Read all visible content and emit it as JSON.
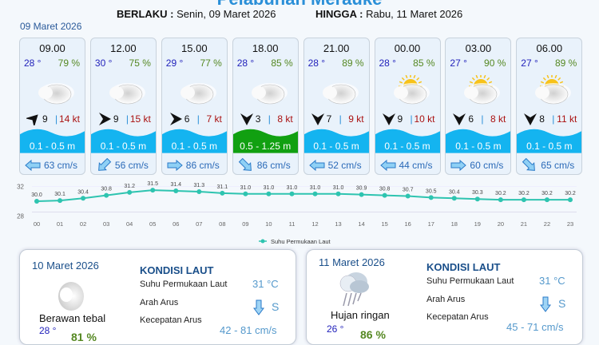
{
  "header": {
    "title": "Pelabuhan Merauke",
    "valid_from_label": "BERLAKU :",
    "valid_from": "Senin, 09 Maret 2026",
    "valid_to_label": "HINGGA :",
    "valid_to": "Rabu, 11 Maret 2026"
  },
  "day_label": "09 Maret 2026",
  "forecasts": [
    {
      "time": "09.00",
      "temp": "28 °",
      "hum": "79 %",
      "icon": "cloudy-icon",
      "wind_dir_deg": 225,
      "wind": "9",
      "kt": "14 kt",
      "wave": "0.1 - 0.5 m",
      "wave_color": "#14b4f0",
      "cur_dir": "left",
      "cur": "63 cm/s"
    },
    {
      "time": "12.00",
      "temp": "30 °",
      "hum": "75 %",
      "icon": "cloudy-icon",
      "wind_dir_deg": 270,
      "wind": "9",
      "kt": "15 kt",
      "wave": "0.1 - 0.5 m",
      "wave_color": "#14b4f0",
      "cur_dir": "down-left",
      "cur": "56 cm/s"
    },
    {
      "time": "15.00",
      "temp": "29 °",
      "hum": "77 %",
      "icon": "cloudy-icon",
      "wind_dir_deg": 270,
      "wind": "6",
      "kt": "7 kt",
      "wave": "0.1 - 0.5 m",
      "wave_color": "#14b4f0",
      "cur_dir": "right",
      "cur": "86 cm/s"
    },
    {
      "time": "18.00",
      "temp": "28 °",
      "hum": "85 %",
      "icon": "cloudy-icon",
      "wind_dir_deg": 0,
      "wind": "3",
      "kt": "8 kt",
      "wave": "0.5 - 1.25 m",
      "wave_color": "#11a011",
      "cur_dir": "down-right",
      "cur": "86 cm/s"
    },
    {
      "time": "21.00",
      "temp": "28 °",
      "hum": "89 %",
      "icon": "cloudy-icon",
      "wind_dir_deg": 0,
      "wind": "7",
      "kt": "9 kt",
      "wave": "0.1 - 0.5 m",
      "wave_color": "#14b4f0",
      "cur_dir": "left",
      "cur": "52 cm/s"
    },
    {
      "time": "00.00",
      "temp": "28 °",
      "hum": "85 %",
      "icon": "partly-cloudy-icon",
      "wind_dir_deg": 0,
      "wind": "9",
      "kt": "10 kt",
      "wave": "0.1 - 0.5 m",
      "wave_color": "#14b4f0",
      "cur_dir": "left",
      "cur": "44 cm/s"
    },
    {
      "time": "03.00",
      "temp": "27 °",
      "hum": "90 %",
      "icon": "partly-cloudy-icon",
      "wind_dir_deg": 0,
      "wind": "6",
      "kt": "8 kt",
      "wave": "0.1 - 0.5 m",
      "wave_color": "#14b4f0",
      "cur_dir": "right",
      "cur": "60 cm/s"
    },
    {
      "time": "06.00",
      "temp": "27 °",
      "hum": "89 %",
      "icon": "partly-cloudy-icon",
      "wind_dir_deg": 0,
      "wind": "8",
      "kt": "11 kt",
      "wave": "0.1 - 0.5 m",
      "wave_color": "#14b4f0",
      "cur_dir": "down-right",
      "cur": "65 cm/s"
    }
  ],
  "chart_data": {
    "type": "line",
    "x": [
      "00",
      "01",
      "02",
      "03",
      "04",
      "05",
      "06",
      "07",
      "08",
      "09",
      "10",
      "11",
      "12",
      "13",
      "14",
      "15",
      "16",
      "17",
      "18",
      "19",
      "20",
      "21",
      "22",
      "23"
    ],
    "series": [
      {
        "name": "Suhu Permukaan Laut",
        "values": [
          30.0,
          30.1,
          30.4,
          30.8,
          31.2,
          31.5,
          31.4,
          31.3,
          31.1,
          31.0,
          31.0,
          31.0,
          31.0,
          31.0,
          30.9,
          30.8,
          30.7,
          30.5,
          30.4,
          30.3,
          30.2,
          30.2,
          30.2,
          30.2
        ]
      }
    ],
    "yticks": [
      "32",
      "28"
    ],
    "ylim": [
      28,
      32
    ],
    "color": "#2ec4b0",
    "legend": "bottom"
  },
  "panels": [
    {
      "date": "10 Maret 2026",
      "icon": "cloudy-icon",
      "desc": "Berawan tebal",
      "temp": "28 °",
      "hum": "81 %",
      "title": "KONDISI LAUT",
      "sst_label": "Suhu Permukaan Laut",
      "sst": "31 °C",
      "dir_label": "Arah Arus",
      "dir": "S",
      "speed_label": "Kecepatan Arus",
      "speed": "42 - 81 cm/s"
    },
    {
      "date": "11 Maret 2026",
      "icon": "light-rain-icon",
      "desc": "Hujan ringan",
      "temp": "26 °",
      "hum": "86 %",
      "title": "KONDISI LAUT",
      "sst_label": "Suhu Permukaan Laut",
      "sst": "31 °C",
      "dir_label": "Arah Arus",
      "dir": "S",
      "speed_label": "Kecepatan Arus",
      "speed": "45 - 71 cm/s"
    }
  ]
}
